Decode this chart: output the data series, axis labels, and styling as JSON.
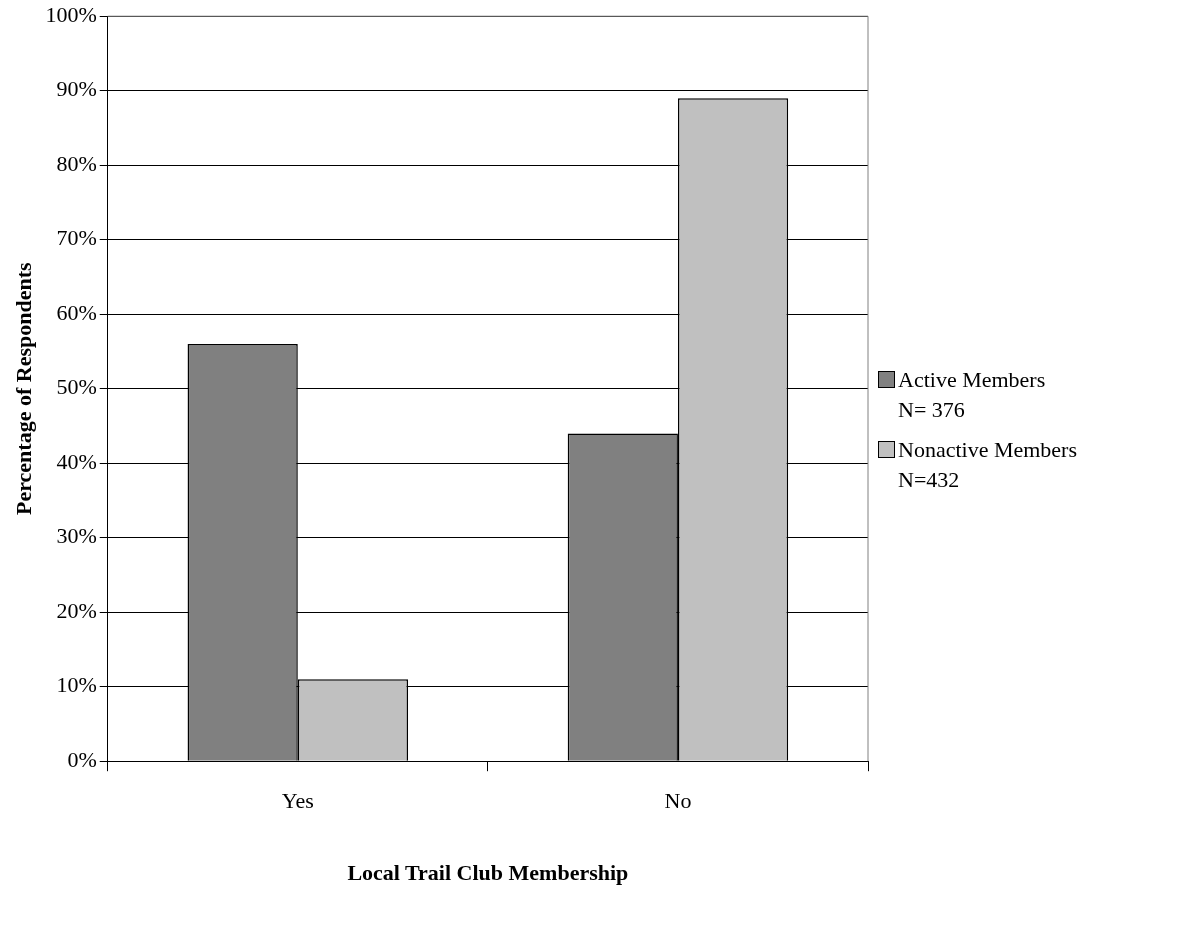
{
  "chart_data": {
    "type": "bar",
    "xlabel": "Local Trail Club Membership",
    "ylabel": "Percentage of Respondents",
    "categories": [
      "Yes",
      "No"
    ],
    "series": [
      {
        "name": "Active Members\nN= 376",
        "color": "#808080",
        "values": [
          56,
          44
        ]
      },
      {
        "name": "Nonactive Members\nN=432",
        "color": "#c0c0c0",
        "values": [
          11,
          89
        ]
      }
    ],
    "ylim": [
      0,
      100
    ],
    "yticks": [
      {
        "value": 0,
        "label": "0%"
      },
      {
        "value": 10,
        "label": "10%"
      },
      {
        "value": 20,
        "label": "20%"
      },
      {
        "value": 30,
        "label": "30%"
      },
      {
        "value": 40,
        "label": "40%"
      },
      {
        "value": 50,
        "label": "50%"
      },
      {
        "value": 60,
        "label": "60%"
      },
      {
        "value": 70,
        "label": "70%"
      },
      {
        "value": 80,
        "label": "80%"
      },
      {
        "value": 90,
        "label": "90%"
      },
      {
        "value": 100,
        "label": "100%"
      }
    ],
    "grid": "y",
    "legend": "right"
  }
}
